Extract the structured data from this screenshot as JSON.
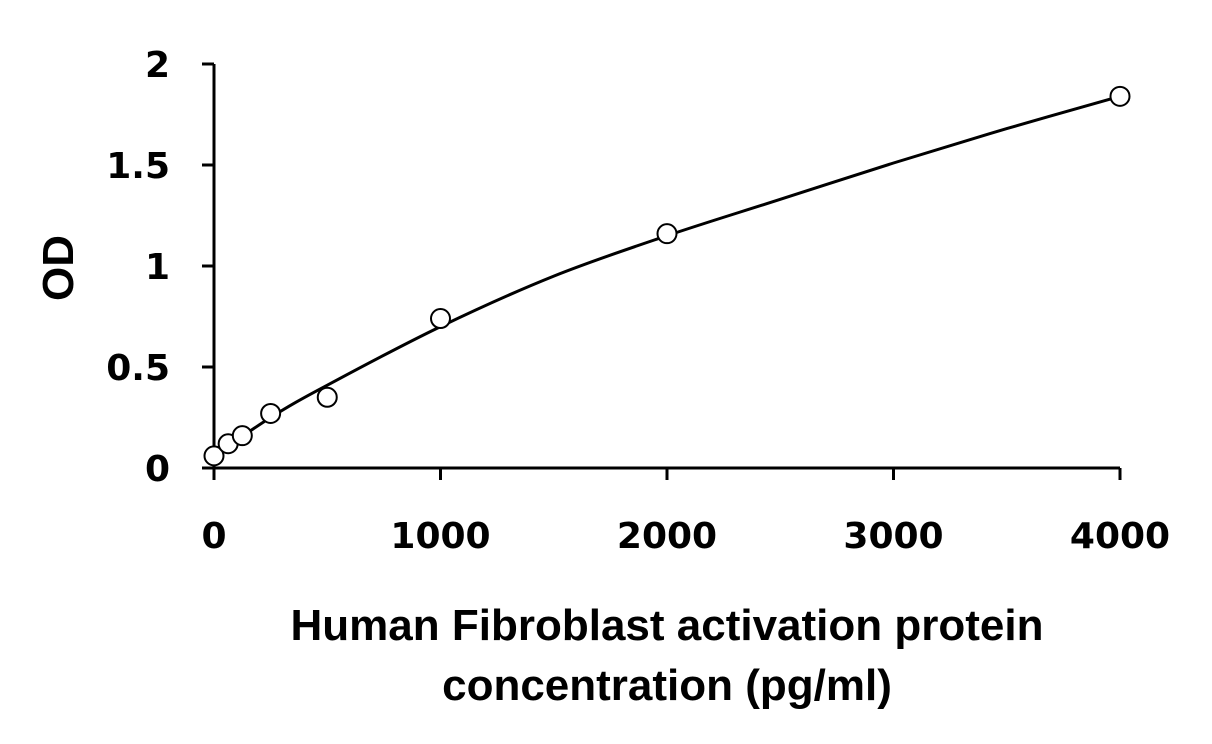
{
  "chart_data": {
    "type": "scatter",
    "xlabel_lines": [
      "Human Fibroblast activation protein",
      "concentration (pg/ml)"
    ],
    "ylabel": "OD",
    "xlim": [
      0,
      4000
    ],
    "ylim": [
      0,
      2
    ],
    "x_ticks": [
      0,
      1000,
      2000,
      3000,
      4000
    ],
    "y_ticks": [
      0,
      0.5,
      1,
      1.5,
      2
    ],
    "x_tick_labels": [
      "0",
      "1000",
      "2000",
      "3000",
      "4000"
    ],
    "y_tick_labels": [
      "0",
      "0.5",
      "1",
      "1.5",
      "2"
    ],
    "grid": false,
    "legend": "none",
    "series": [
      {
        "marker": "open-circle",
        "x": [
          0,
          62.5,
          125,
          250,
          500,
          1000,
          2000,
          4000
        ],
        "y": [
          0.06,
          0.12,
          0.16,
          0.27,
          0.35,
          0.74,
          1.16,
          1.84
        ]
      }
    ],
    "fit_curve": {
      "type": "smooth",
      "x": [
        0,
        250,
        500,
        1000,
        1500,
        2000,
        2500,
        3000,
        3500,
        4000
      ],
      "y": [
        0.06,
        0.25,
        0.41,
        0.7,
        0.95,
        1.15,
        1.33,
        1.51,
        1.68,
        1.84
      ]
    },
    "color": "#000000"
  }
}
